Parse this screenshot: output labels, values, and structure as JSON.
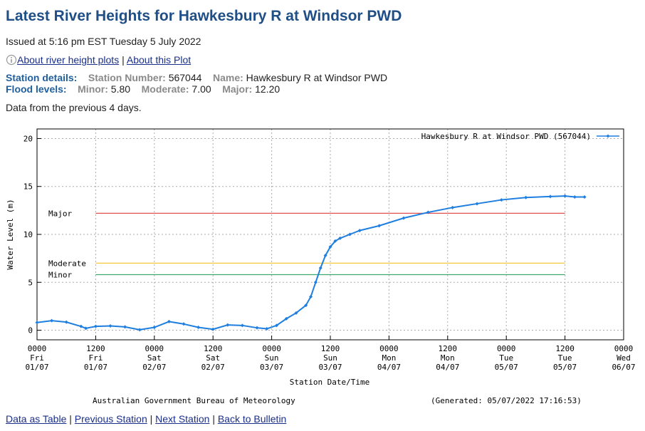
{
  "page": {
    "title": "Latest River Heights for Hawkesbury R at Windsor PWD",
    "issued": "Issued at 5:16 pm EST Tuesday 5 July 2022",
    "links": [
      "About river height plots",
      "About this Plot"
    ],
    "separator": "|",
    "station": {
      "label": "Station details:",
      "number_label": "Station Number:",
      "number": "567044",
      "name_label": "Name:",
      "name": "Hawkesbury R at Windsor PWD"
    },
    "flood": {
      "label": "Flood levels:",
      "minor_label": "Minor:",
      "minor": "5.80",
      "moderate_label": "Moderate:",
      "moderate": "7.00",
      "major_label": "Major:",
      "major": "12.20"
    },
    "note": "Data from the previous 4 days.",
    "footer_links": [
      "Data as Table",
      "Previous Station",
      "Next Station",
      "Back to Bulletin"
    ]
  },
  "chart_data": {
    "type": "line",
    "ylabel": "Water Level (m)",
    "xlabel": "Station Date/Time",
    "source": "Australian Government Bureau of Meteorology",
    "generated": "(Generated: 05/07/2022 17:16:53)",
    "xlim": [
      0,
      120
    ],
    "ylim": [
      -1,
      21
    ],
    "yticks": [
      0,
      5,
      10,
      15,
      20
    ],
    "xticks": [
      {
        "value": 0,
        "label": "0000 Fri 01/07"
      },
      {
        "value": 12,
        "label": "1200 Fri 01/07"
      },
      {
        "value": 24,
        "label": "0000 Sat 02/07"
      },
      {
        "value": 36,
        "label": "1200 Sat 02/07"
      },
      {
        "value": 48,
        "label": "0000 Sun 03/07"
      },
      {
        "value": 60,
        "label": "1200 Sun 03/07"
      },
      {
        "value": 72,
        "label": "0000 Mon 04/07"
      },
      {
        "value": 84,
        "label": "1200 Mon 04/07"
      },
      {
        "value": 96,
        "label": "0000 Tue 05/07"
      },
      {
        "value": 108,
        "label": "1200 Tue 05/07"
      },
      {
        "value": 120,
        "label": "0000 Wed 06/07"
      }
    ],
    "grid": true,
    "legend": "upper right",
    "threshold_x": [
      12,
      108
    ],
    "thresholds": [
      {
        "name": "Major",
        "value": 12.2,
        "color": "#e05050"
      },
      {
        "name": "Moderate",
        "value": 7.0,
        "color": "#f5c842"
      },
      {
        "name": "Minor",
        "value": 5.8,
        "color": "#3caa6e"
      }
    ],
    "series": [
      {
        "name": "Hawkesbury R at Windsor PWD (567044)",
        "color": "#1e7fe0",
        "x": [
          0,
          3,
          6,
          9,
          10,
          12,
          15,
          18,
          21,
          24,
          27,
          30,
          33,
          36,
          39,
          42,
          45,
          47,
          49,
          51,
          53,
          55,
          56,
          57,
          58,
          59,
          60,
          61,
          62,
          64,
          66,
          70,
          75,
          80,
          85,
          90,
          95,
          100,
          105,
          108,
          110,
          112
        ],
        "values": [
          0.8,
          1.0,
          0.85,
          0.4,
          0.2,
          0.4,
          0.45,
          0.35,
          0.05,
          0.3,
          0.9,
          0.65,
          0.3,
          0.1,
          0.55,
          0.5,
          0.25,
          0.15,
          0.5,
          1.2,
          1.8,
          2.6,
          3.5,
          5.0,
          6.5,
          7.8,
          8.7,
          9.3,
          9.6,
          10.0,
          10.4,
          10.9,
          11.7,
          12.3,
          12.8,
          13.2,
          13.6,
          13.85,
          13.95,
          14.0,
          13.9,
          13.9
        ]
      }
    ]
  }
}
